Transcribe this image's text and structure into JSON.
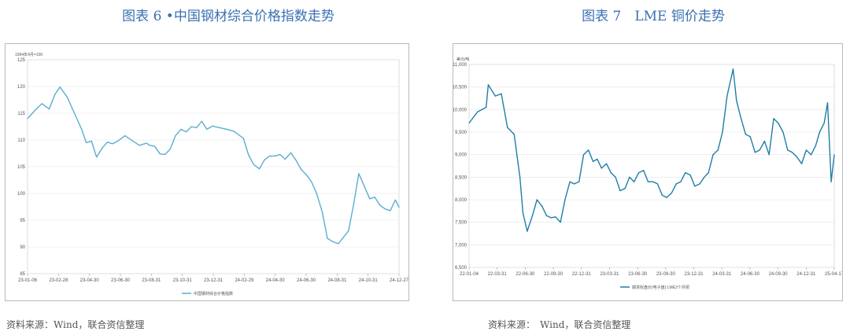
{
  "panels": [
    {
      "title": "图表 6 •中国钢材综合价格指数走势",
      "source": "资料来源：Wind，联合资信整理"
    },
    {
      "title": "图表 7　LME 铜价走势",
      "source": "资料来源：　Wind，联合资信整理"
    }
  ],
  "chart_data": [
    {
      "type": "line",
      "title": "图表 6 •中国钢材综合价格指数走势",
      "unit_label": "1994年4月=100",
      "ylim": [
        85,
        125
      ],
      "y_ticks": [
        85,
        90,
        95,
        100,
        105,
        110,
        115,
        120,
        125
      ],
      "x_ticks": [
        "23-01-06",
        "23-02-28",
        "23-04-30",
        "23-06-30",
        "23-08-31",
        "23-10-31",
        "23-12-31",
        "24-02-29",
        "24-04-30",
        "24-06-30",
        "24-08-31",
        "24-10-31",
        "24-12-27"
      ],
      "grid": true,
      "legend_position": "bottom",
      "color": "#5aaed0",
      "series": [
        {
          "name": "中国钢材综合价格指数",
          "x": [
            "23-01-06",
            "23-01-20",
            "23-02-03",
            "23-02-17",
            "23-02-28",
            "23-03-10",
            "23-03-24",
            "23-04-07",
            "23-04-21",
            "23-04-30",
            "23-05-10",
            "23-05-20",
            "23-05-31",
            "23-06-10",
            "23-06-20",
            "23-06-30",
            "23-07-14",
            "23-07-28",
            "23-08-11",
            "23-08-25",
            "23-08-31",
            "23-09-10",
            "23-09-20",
            "23-09-30",
            "23-10-10",
            "23-10-20",
            "23-10-31",
            "23-11-10",
            "23-11-20",
            "23-11-30",
            "23-12-10",
            "23-12-20",
            "23-12-31",
            "24-01-14",
            "24-01-28",
            "24-02-11",
            "24-02-29",
            "24-03-10",
            "24-03-20",
            "24-03-31",
            "24-04-10",
            "24-04-20",
            "24-04-30",
            "24-05-10",
            "24-05-20",
            "24-05-31",
            "24-06-10",
            "24-06-20",
            "24-06-30",
            "24-07-10",
            "24-07-20",
            "24-07-31",
            "24-08-10",
            "24-08-20",
            "24-08-31",
            "24-09-10",
            "24-09-20",
            "24-09-30",
            "24-10-10",
            "24-10-20",
            "24-10-31",
            "24-11-10",
            "24-11-20",
            "24-11-30",
            "24-12-10",
            "24-12-20",
            "24-12-27"
          ],
          "values": [
            114.0,
            115.5,
            116.8,
            115.8,
            118.5,
            119.9,
            118.0,
            115.0,
            112.0,
            109.5,
            109.8,
            106.8,
            108.5,
            109.6,
            109.3,
            109.8,
            110.8,
            109.9,
            109.0,
            109.4,
            109.0,
            108.8,
            107.4,
            107.3,
            108.3,
            110.8,
            112.0,
            111.5,
            112.5,
            112.3,
            113.5,
            112.0,
            112.6,
            112.3,
            112.0,
            111.6,
            110.3,
            107.2,
            105.4,
            104.6,
            106.3,
            107.0,
            107.0,
            107.3,
            106.4,
            107.6,
            106.2,
            104.5,
            103.5,
            102.2,
            100.0,
            96.5,
            91.6,
            91.0,
            90.6,
            91.8,
            93.0,
            98.0,
            103.7,
            101.5,
            99.0,
            99.3,
            97.8,
            97.1,
            96.8,
            98.8,
            97.4
          ]
        }
      ]
    },
    {
      "type": "line",
      "title": "图表 7　LME 铜价走势",
      "unit_label": "美元/吨",
      "ylim": [
        6500,
        11000
      ],
      "y_ticks": [
        "6,500",
        "7,000",
        "7,500",
        "8,000",
        "8,500",
        "9,000",
        "9,500",
        "10,000",
        "10,500",
        "11,000"
      ],
      "x_ticks": [
        "22-01-04",
        "22-03-31",
        "22-06-30",
        "22-09-30",
        "22-12-31",
        "23-03-31",
        "23-06-30",
        "23-09-30",
        "23-12-31",
        "24-03-31",
        "24-06-30",
        "24-09-30",
        "24-12-31",
        "25-04-17"
      ],
      "grid": true,
      "legend_position": "bottom",
      "color": "#1f7ea8",
      "series": [
        {
          "name": "期货收盘价(电子盘):LME3个月铜",
          "x": [
            "22-01-04",
            "22-02-01",
            "22-03-01",
            "22-03-08",
            "22-03-31",
            "22-04-20",
            "22-05-10",
            "22-06-01",
            "22-06-20",
            "22-06-30",
            "22-07-14",
            "22-07-31",
            "22-08-15",
            "22-09-01",
            "22-09-15",
            "22-09-30",
            "22-10-15",
            "22-10-31",
            "22-11-15",
            "22-12-01",
            "22-12-15",
            "22-12-31",
            "23-01-15",
            "23-01-31",
            "23-02-15",
            "23-03-01",
            "23-03-15",
            "23-03-31",
            "23-04-15",
            "23-04-30",
            "23-05-15",
            "23-05-31",
            "23-06-15",
            "23-06-30",
            "23-07-15",
            "23-07-31",
            "23-08-15",
            "23-08-31",
            "23-09-15",
            "23-09-30",
            "23-10-15",
            "23-10-31",
            "23-11-15",
            "23-11-30",
            "23-12-15",
            "23-12-31",
            "24-01-15",
            "24-01-31",
            "24-02-15",
            "24-02-29",
            "24-03-15",
            "24-03-31",
            "24-04-15",
            "24-04-30",
            "24-05-20",
            "24-05-31",
            "24-06-15",
            "24-06-30",
            "24-07-15",
            "24-07-31",
            "24-08-15",
            "24-08-31",
            "24-09-15",
            "24-09-30",
            "24-10-15",
            "24-10-31",
            "24-11-15",
            "24-11-30",
            "24-12-15",
            "24-12-31",
            "25-01-15",
            "25-01-31",
            "25-02-15",
            "25-02-28",
            "25-03-15",
            "25-03-26",
            "25-04-07",
            "25-04-17"
          ],
          "values": [
            9700,
            9950,
            10050,
            10550,
            10300,
            10350,
            9600,
            9450,
            8500,
            7700,
            7300,
            7650,
            8000,
            7850,
            7650,
            7600,
            7620,
            7500,
            8000,
            8400,
            8350,
            8400,
            9000,
            9100,
            8850,
            8900,
            8700,
            8800,
            8600,
            8500,
            8200,
            8250,
            8500,
            8400,
            8600,
            8650,
            8400,
            8400,
            8350,
            8100,
            8050,
            8150,
            8350,
            8400,
            8600,
            8550,
            8300,
            8350,
            8500,
            8600,
            9000,
            9100,
            9500,
            10300,
            10900,
            10200,
            9800,
            9450,
            9400,
            9050,
            9100,
            9300,
            9000,
            9800,
            9700,
            9500,
            9100,
            9050,
            8950,
            8800,
            9100,
            9000,
            9200,
            9500,
            9700,
            10150,
            8400,
            9000
          ]
        }
      ]
    }
  ]
}
